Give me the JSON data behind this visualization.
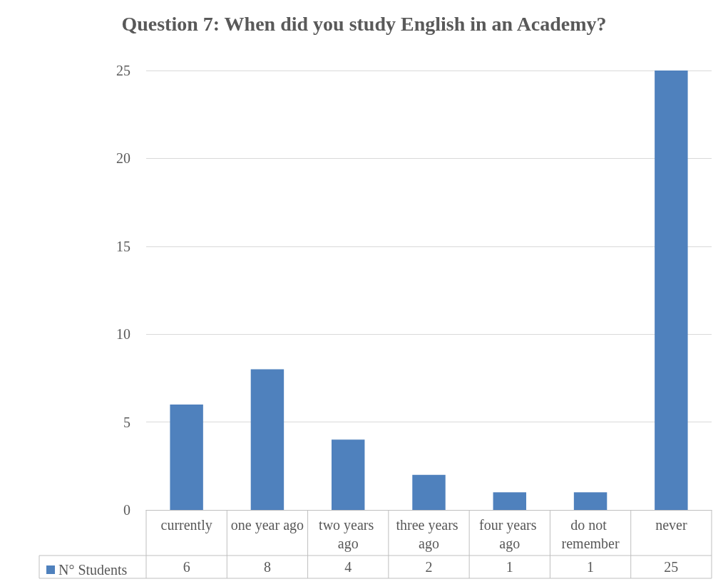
{
  "chart_data": {
    "type": "bar",
    "title": "Question 7: When did you study English in an Academy?",
    "categories": [
      "currently",
      "one year ago",
      "two years ago",
      "three years ago",
      "four years ago",
      "do not remember",
      "never"
    ],
    "series": [
      {
        "name": "N° Students",
        "color": "#4f81bd",
        "values": [
          6,
          8,
          4,
          2,
          1,
          1,
          25
        ]
      }
    ],
    "ylim": [
      0,
      25
    ],
    "yticks": [
      0,
      5,
      10,
      15,
      20,
      25
    ],
    "grid": "y",
    "legend": "bottom left",
    "data_labels": true
  }
}
